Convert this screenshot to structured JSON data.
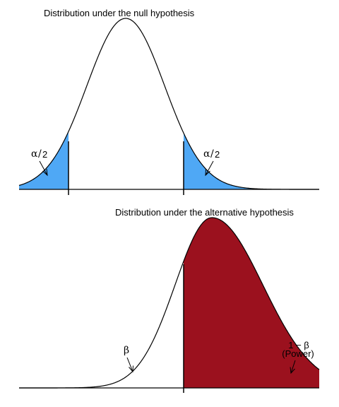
{
  "null_panel": {
    "title": "Distribution under the null hypothesis",
    "left_tail_label": {
      "alpha": "α",
      "slash": "/",
      "two": "2"
    },
    "right_tail_label": {
      "alpha": "α",
      "slash": "/",
      "two": "2"
    }
  },
  "alt_panel": {
    "title": "Distribution under the alternative hypothesis",
    "beta_label": "β",
    "power_line1": "1 − β",
    "power_line2": "(Power)"
  },
  "colors": {
    "tail_fill": "#4fa8f5",
    "power_fill": "#9b111e",
    "curve": "#000000"
  }
}
